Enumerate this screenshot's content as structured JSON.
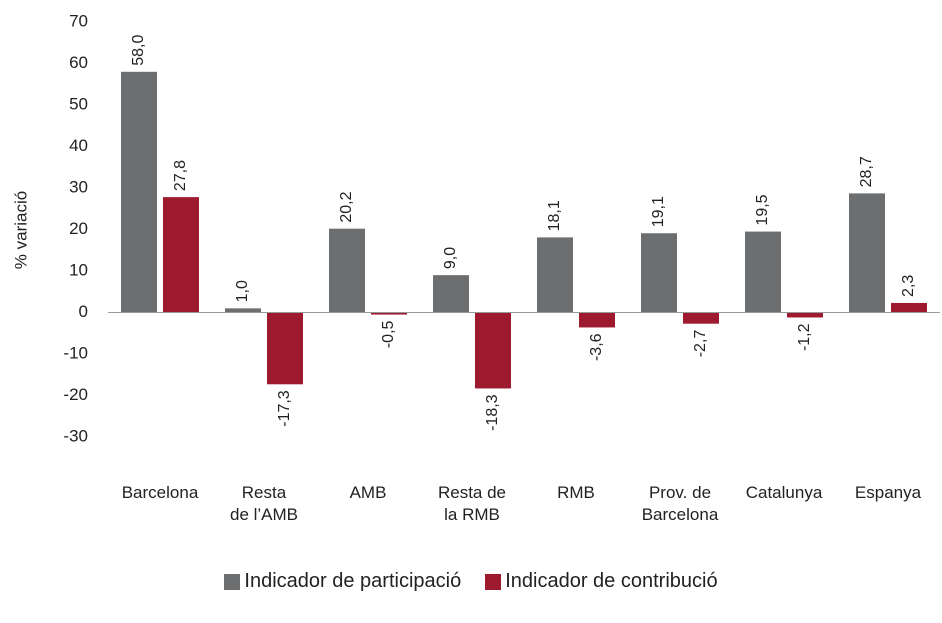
{
  "chart_data": {
    "type": "bar",
    "y_label": "% variació",
    "categories": [
      "Barcelona",
      "Resta\nde l’AMB",
      "AMB",
      "Resta de\nla RMB",
      "RMB",
      "Prov. de\nBarcelona",
      "Catalunya",
      "Espanya"
    ],
    "series": [
      {
        "name": "Indicador de participació",
        "color": "#6d6e70",
        "values": [
          58.0,
          1.0,
          20.2,
          9.0,
          18.1,
          19.1,
          19.5,
          28.7
        ],
        "value_labels": [
          "58,0",
          "1,0",
          "20,2",
          "9,0",
          "18,1",
          "19,1",
          "19,5",
          "28,7"
        ]
      },
      {
        "name": "Indicador de contribució",
        "color": "#9e1b2f",
        "values": [
          27.8,
          -17.3,
          -0.5,
          -18.3,
          -3.6,
          -2.7,
          -1.2,
          2.3
        ],
        "value_labels": [
          "27,8",
          "-17,3",
          "-0,5",
          "-18,3",
          "-3,6",
          "-2,7",
          "-1,2",
          "2,3"
        ]
      }
    ],
    "ylim": [
      -30,
      70
    ],
    "yticks": [
      -30,
      -20,
      -10,
      0,
      10,
      20,
      30,
      40,
      50,
      60,
      70
    ],
    "grid": false,
    "legend": "bottom"
  }
}
